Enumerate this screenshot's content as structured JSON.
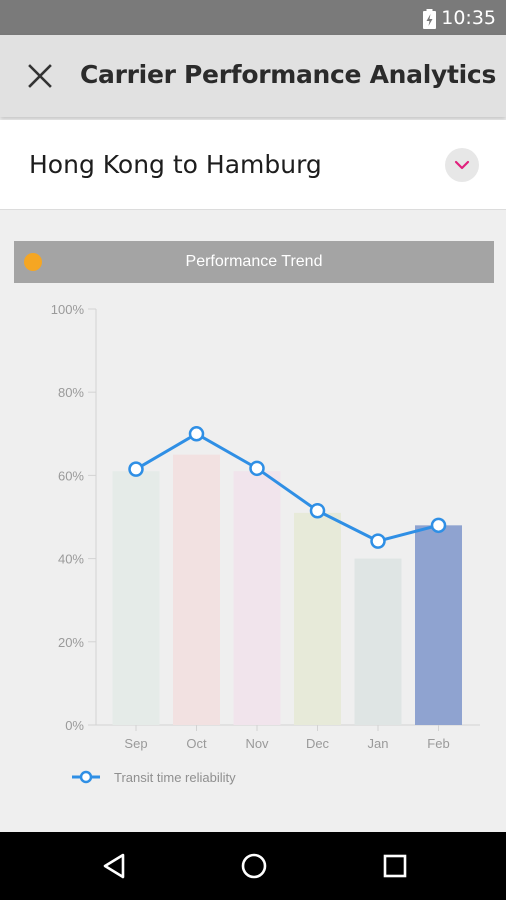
{
  "status_bar": {
    "time": "10:35"
  },
  "app_bar": {
    "title": "Carrier Performance Analytics",
    "close_icon": "close-icon"
  },
  "route": {
    "label": "Hong Kong to Hamburg",
    "dropdown_icon": "chevron-down-icon"
  },
  "chart_card": {
    "title": "Performance Trend",
    "info_icon": "info-icon"
  },
  "chart_data": {
    "type": "bar",
    "categories": [
      "Sep",
      "Oct",
      "Nov",
      "Dec",
      "Jan",
      "Feb"
    ],
    "bar_values": [
      61,
      65,
      61,
      51,
      40,
      48
    ],
    "bar_colors": [
      "#e5ebe8",
      "#f2e1e1",
      "#f1e4ec",
      "#e7ead9",
      "#dfe5e4",
      "#8fa3d0"
    ],
    "series": [
      {
        "name": "Transit time reliability",
        "type": "line",
        "color": "#2f8fe5",
        "values": [
          61.5,
          70,
          61.7,
          51.5,
          44.2,
          48
        ]
      }
    ],
    "y_ticks": [
      "0%",
      "20%",
      "40%",
      "60%",
      "80%",
      "100%"
    ],
    "ylim": [
      0,
      100
    ],
    "legend": "bottom-left"
  },
  "nav_bar": {
    "back_icon": "back-icon",
    "home_icon": "home-icon",
    "recents_icon": "recents-icon"
  }
}
